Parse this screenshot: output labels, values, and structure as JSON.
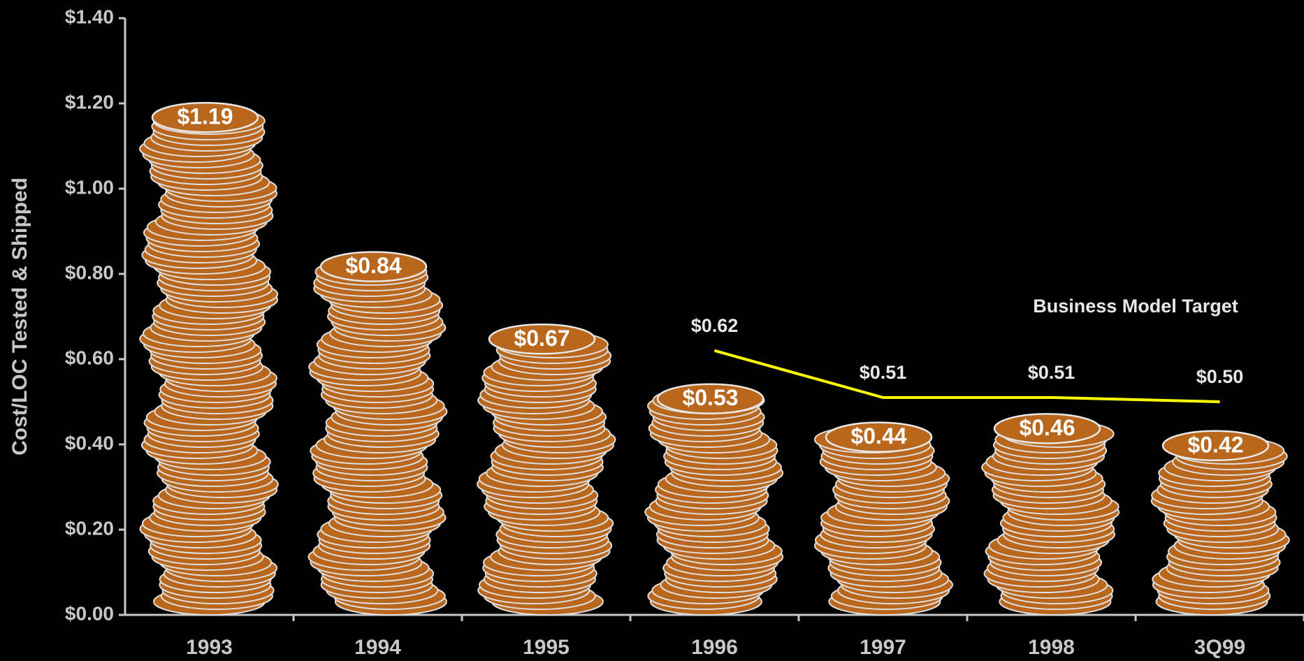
{
  "chart_data": {
    "type": "bar",
    "y_label": "Cost/LOC Tested & Shipped",
    "categories": [
      "1993",
      "1994",
      "1995",
      "1996",
      "1997",
      "1998",
      "3Q99"
    ],
    "series": [
      {
        "type": "bar",
        "color": "#b8671c",
        "values": [
          1.19,
          0.84,
          0.67,
          0.53,
          0.44,
          0.46,
          0.42
        ],
        "value_labels": [
          "$1.19",
          "$0.84",
          "$0.67",
          "$0.53",
          "$0.44",
          "$0.46",
          "$0.42"
        ]
      },
      {
        "type": "line",
        "name": "Business Model Target",
        "color": "#ffff00",
        "values": [
          null,
          null,
          null,
          0.62,
          0.51,
          0.51,
          0.5
        ],
        "value_labels": [
          null,
          null,
          null,
          "$0.62",
          "$0.51",
          "$0.51",
          "$0.50"
        ]
      }
    ],
    "ylim": [
      0,
      1.4
    ],
    "yticks": [
      {
        "value": 0,
        "label": "$0.00"
      },
      {
        "value": 0.2,
        "label": "$0.20"
      },
      {
        "value": 0.4,
        "label": "$0.40"
      },
      {
        "value": 0.6,
        "label": "$0.60"
      },
      {
        "value": 0.8,
        "label": "$0.80"
      },
      {
        "value": 1.0,
        "label": "$1.00"
      },
      {
        "value": 1.2,
        "label": "$1.20"
      },
      {
        "value": 1.4,
        "label": "$1.40"
      }
    ]
  }
}
